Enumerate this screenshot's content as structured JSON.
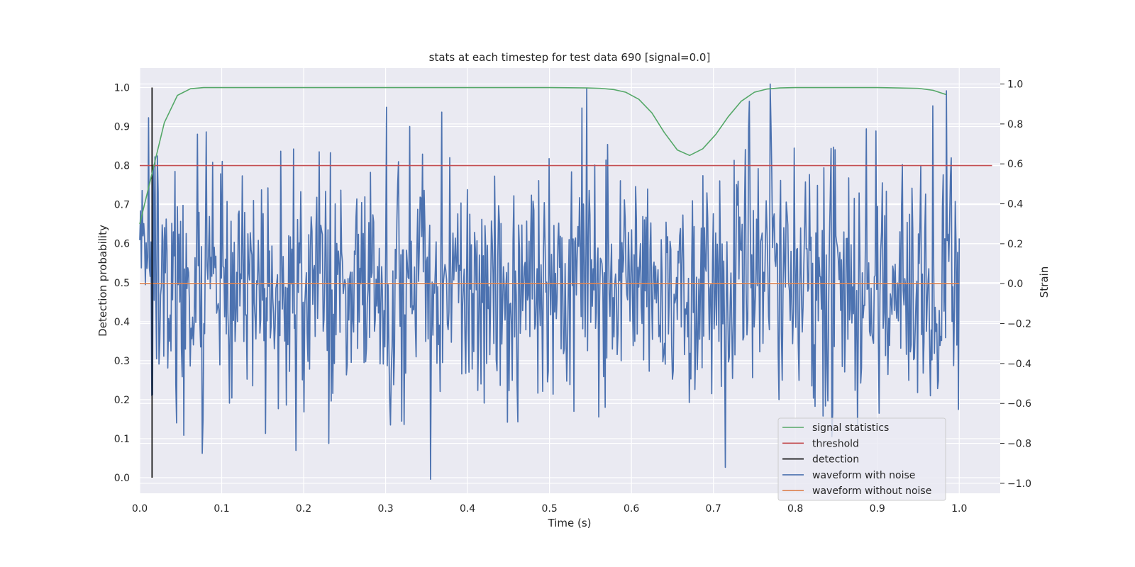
{
  "chart_data": {
    "type": "line",
    "title": "stats at each timestep for test data 690 [signal=0.0]",
    "xlabel": "Time (s)",
    "ylabel": "Detection probability",
    "y2label": "Strain",
    "xlim": [
      0.0,
      1.05
    ],
    "ylim": [
      -0.04,
      1.05
    ],
    "y2lim": [
      -1.05,
      1.08
    ],
    "grid": true,
    "legend_position": "bottom-right",
    "x_ticks": [
      "0.0",
      "0.1",
      "0.2",
      "0.3",
      "0.4",
      "0.5",
      "0.6",
      "0.7",
      "0.8",
      "0.9",
      "1.0"
    ],
    "y_ticks": [
      "0.0",
      "0.1",
      "0.2",
      "0.3",
      "0.4",
      "0.5",
      "0.6",
      "0.7",
      "0.8",
      "0.9",
      "1.0"
    ],
    "y2_ticks": [
      "−1.0",
      "−0.8",
      "−0.6",
      "−0.4",
      "−0.2",
      "0.0",
      "0.2",
      "0.4",
      "0.6",
      "0.8",
      "1.0"
    ],
    "series": [
      {
        "name": "signal statistics",
        "axis": "left",
        "color": "#55a868",
        "x": [
          0.0,
          0.015,
          0.03,
          0.046,
          0.062,
          0.078,
          0.1,
          0.2,
          0.3,
          0.4,
          0.5,
          0.545,
          0.562,
          0.578,
          0.593,
          0.609,
          0.625,
          0.64,
          0.656,
          0.671,
          0.687,
          0.703,
          0.718,
          0.734,
          0.75,
          0.765,
          0.781,
          0.8,
          0.9,
          0.95,
          0.968,
          0.984
        ],
        "y": [
          0.65,
          0.78,
          0.91,
          0.98,
          0.997,
          1.0,
          1.0,
          1.0,
          1.0,
          1.0,
          1.0,
          0.999,
          0.998,
          0.995,
          0.988,
          0.97,
          0.935,
          0.885,
          0.84,
          0.826,
          0.843,
          0.88,
          0.925,
          0.965,
          0.988,
          0.996,
          0.999,
          1.0,
          1.0,
          0.998,
          0.993,
          0.982
        ]
      },
      {
        "name": "threshold",
        "axis": "left",
        "color": "#c44e52",
        "x": [
          0.0,
          1.04
        ],
        "y": [
          0.8,
          0.8
        ]
      },
      {
        "name": "detection",
        "axis": "left",
        "color": "#000000",
        "x": [
          0.015,
          0.015
        ],
        "y": [
          0.0,
          1.0
        ]
      },
      {
        "name": "waveform with noise",
        "axis": "right",
        "color": "#4c72b0",
        "x_range": [
          0.0,
          1.0
        ],
        "n_points": 1024,
        "noise_scale": 0.32,
        "y_landmarks": [
          [
            0.076,
            -0.85
          ],
          [
            0.081,
            0.76
          ],
          [
            0.153,
            -0.75
          ],
          [
            0.54,
            0.88
          ],
          [
            0.715,
            -0.92
          ],
          [
            0.769,
            1.0
          ],
          [
            0.99,
            0.63
          ],
          [
            0.999,
            -0.63
          ]
        ]
      },
      {
        "name": "waveform without noise",
        "axis": "right",
        "color": "#dd8452",
        "x": [
          0.0,
          1.0
        ],
        "y": [
          0.0,
          0.0
        ]
      }
    ]
  }
}
